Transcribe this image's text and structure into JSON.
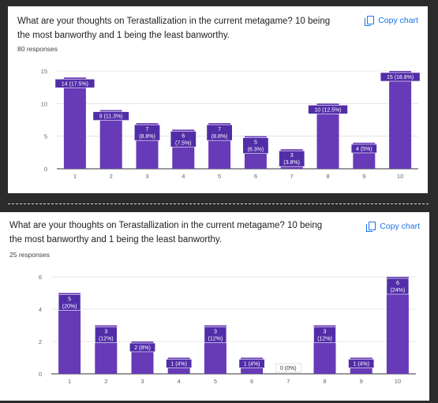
{
  "colors": {
    "bar": "#673ab7",
    "bar_dark": "#512da8",
    "link": "#1a73e8"
  },
  "panels": [
    {
      "question": "What are your thoughts on Terastallization in the current metagame? 10 being the most banworthy and 1 being the least banworthy.",
      "copy_label": "Copy chart",
      "copy_icon": "copy-icon",
      "responses": "80 responses"
    },
    {
      "question": "What are your thoughts on Terastallization in the current metagame? 10 being the most banworthy and 1 being the least banworthy.",
      "copy_label": "Copy chart",
      "copy_icon": "copy-icon",
      "responses": "25 responses"
    }
  ],
  "chart_data": [
    {
      "type": "bar",
      "categories": [
        "1",
        "2",
        "3",
        "4",
        "5",
        "6",
        "7",
        "8",
        "9",
        "10"
      ],
      "values": [
        14,
        9,
        7,
        6,
        7,
        5,
        3,
        10,
        4,
        15
      ],
      "data_labels": [
        "14 (17.5%)",
        "9 (11.3%)",
        "7\n(8.8%)",
        "6\n(7.5%)",
        "7\n(8.8%)",
        "5\n(6.3%)",
        "3\n(3.8%)",
        "10 (12.5%)",
        "4 (5%)",
        "15 (18.8%)"
      ],
      "yticks": [
        0,
        5,
        10,
        15
      ],
      "ylim": [
        0,
        15
      ],
      "grid": true
    },
    {
      "type": "bar",
      "categories": [
        "1",
        "2",
        "3",
        "4",
        "5",
        "6",
        "7",
        "8",
        "9",
        "10"
      ],
      "values": [
        5,
        3,
        2,
        1,
        3,
        1,
        0,
        3,
        1,
        6
      ],
      "data_labels": [
        "5\n(20%)",
        "3\n(12%)",
        "2 (8%)",
        "1 (4%)",
        "3\n(12%)",
        "1 (4%)",
        "0 (0%)",
        "3\n(12%)",
        "1 (4%)",
        "6\n(24%)"
      ],
      "yticks": [
        0,
        2,
        4,
        6
      ],
      "ylim": [
        0,
        6
      ],
      "grid": true
    }
  ]
}
